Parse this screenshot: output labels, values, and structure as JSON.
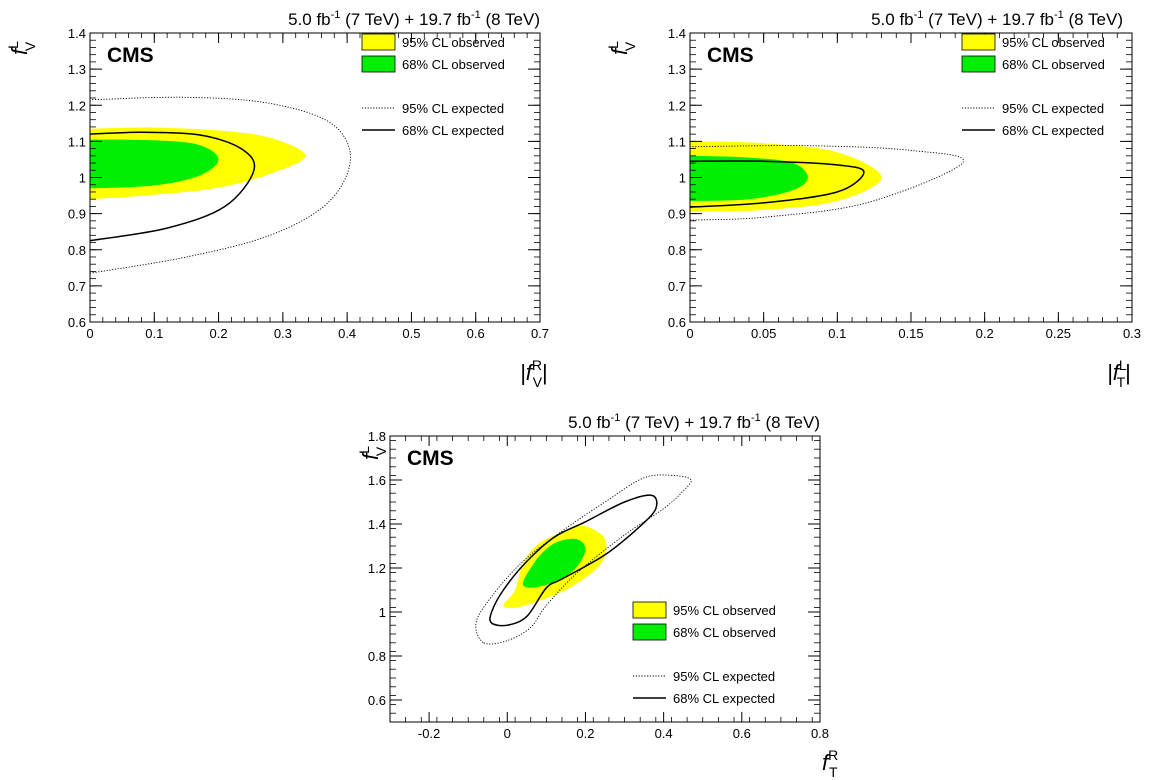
{
  "colors": {
    "cl95_observed": "#ffff00",
    "cl68_observed": "#00ee00",
    "expected_line": "#000000"
  },
  "chart_data": [
    {
      "type": "contour",
      "title": {
        "prefix": "5.0 fb",
        "sup1": "-1",
        "mid": " (7 TeV) + 19.7 fb",
        "sup2": "-1",
        "suffix": " (8 TeV)"
      },
      "brand": "CMS",
      "ylabel": {
        "base": "f",
        "sup": "L",
        "sub": "V"
      },
      "xlabel": {
        "base": "|f",
        "sup": "R",
        "sub": "V",
        "close": "|"
      },
      "xlim": [
        0,
        0.7
      ],
      "ylim": [
        0.6,
        1.4
      ],
      "xticks": [
        0,
        0.1,
        0.2,
        0.3,
        0.4,
        0.5,
        0.6,
        0.7
      ],
      "xtick_labels": [
        "0",
        "0.1",
        "0.2",
        "0.3",
        "0.4",
        "0.5",
        "0.6",
        "0.7"
      ],
      "yticks": [
        0.6,
        0.7,
        0.8,
        0.9,
        1.0,
        1.1,
        1.2,
        1.3,
        1.4
      ],
      "ytick_labels": [
        "0.6",
        "0.7",
        "0.8",
        "0.9",
        "1",
        "1.1",
        "1.2",
        "1.3",
        "1.4"
      ],
      "legend_position": "top-right",
      "legend": [
        "95% CL observed",
        "68% CL observed",
        "95% CL expected",
        "68% CL expected"
      ],
      "contours": [
        {
          "name": "95% CL observed",
          "points": [
            [
              0,
              0.94
            ],
            [
              0.1,
              0.952
            ],
            [
              0.2,
              0.972
            ],
            [
              0.28,
              1.01
            ],
            [
              0.335,
              1.06
            ],
            [
              0.28,
              1.11
            ],
            [
              0.2,
              1.13
            ],
            [
              0.1,
              1.138
            ],
            [
              0,
              1.135
            ]
          ]
        },
        {
          "name": "68% CL observed",
          "points": [
            [
              0,
              0.97
            ],
            [
              0.1,
              0.978
            ],
            [
              0.17,
              1.005
            ],
            [
              0.2,
              1.05
            ],
            [
              0.17,
              1.09
            ],
            [
              0.1,
              1.103
            ],
            [
              0,
              1.105
            ]
          ]
        },
        {
          "name": "95% CL expected",
          "points": [
            [
              0,
              0.735
            ],
            [
              0.15,
              0.78
            ],
            [
              0.28,
              0.84
            ],
            [
              0.37,
              0.93
            ],
            [
              0.405,
              1.05
            ],
            [
              0.375,
              1.15
            ],
            [
              0.28,
              1.205
            ],
            [
              0.15,
              1.222
            ],
            [
              0,
              1.215
            ]
          ]
        },
        {
          "name": "68% CL expected",
          "points": [
            [
              0,
              0.825
            ],
            [
              0.12,
              0.86
            ],
            [
              0.21,
              0.92
            ],
            [
              0.255,
              1.02
            ],
            [
              0.235,
              1.08
            ],
            [
              0.17,
              1.118
            ],
            [
              0.08,
              1.125
            ],
            [
              0,
              1.12
            ]
          ]
        }
      ]
    },
    {
      "type": "contour",
      "title": {
        "prefix": "5.0 fb",
        "sup1": "-1",
        "mid": " (7 TeV) + 19.7 fb",
        "sup2": "-1",
        "suffix": " (8 TeV)"
      },
      "brand": "CMS",
      "ylabel": {
        "base": "f",
        "sup": "L",
        "sub": "V"
      },
      "xlabel": {
        "base": "|f",
        "sup": "L",
        "sub": "T",
        "close": "|"
      },
      "xlim": [
        0,
        0.3
      ],
      "ylim": [
        0.6,
        1.4
      ],
      "xticks": [
        0,
        0.05,
        0.1,
        0.15,
        0.2,
        0.25,
        0.3
      ],
      "xtick_labels": [
        "0",
        "0.05",
        "0.1",
        "0.15",
        "0.2",
        "0.25",
        "0.3"
      ],
      "yticks": [
        0.6,
        0.7,
        0.8,
        0.9,
        1.0,
        1.1,
        1.2,
        1.3,
        1.4
      ],
      "ytick_labels": [
        "0.6",
        "0.7",
        "0.8",
        "0.9",
        "1",
        "1.1",
        "1.2",
        "1.3",
        "1.4"
      ],
      "legend_position": "top-right",
      "legend": [
        "95% CL observed",
        "68% CL observed",
        "95% CL expected",
        "68% CL expected"
      ],
      "contours": [
        {
          "name": "95% CL observed",
          "points": [
            [
              0,
              0.905
            ],
            [
              0.05,
              0.91
            ],
            [
              0.1,
              0.935
            ],
            [
              0.13,
              1.0
            ],
            [
              0.1,
              1.07
            ],
            [
              0.05,
              1.095
            ],
            [
              0,
              1.1
            ]
          ]
        },
        {
          "name": "68% CL observed",
          "points": [
            [
              0,
              0.935
            ],
            [
              0.04,
              0.94
            ],
            [
              0.07,
              0.965
            ],
            [
              0.08,
              1.0
            ],
            [
              0.07,
              1.04
            ],
            [
              0.04,
              1.055
            ],
            [
              0,
              1.06
            ]
          ]
        },
        {
          "name": "95% CL expected",
          "points": [
            [
              0,
              0.882
            ],
            [
              0.05,
              0.89
            ],
            [
              0.12,
              0.93
            ],
            [
              0.185,
              1.04
            ],
            [
              0.15,
              1.075
            ],
            [
              0.08,
              1.088
            ],
            [
              0,
              1.085
            ]
          ]
        },
        {
          "name": "68% CL expected",
          "points": [
            [
              0,
              0.918
            ],
            [
              0.05,
              0.93
            ],
            [
              0.1,
              0.96
            ],
            [
              0.118,
              1.015
            ],
            [
              0.1,
              1.035
            ],
            [
              0.05,
              1.045
            ],
            [
              0,
              1.045
            ]
          ]
        }
      ]
    },
    {
      "type": "contour",
      "title": {
        "prefix": "5.0 fb",
        "sup1": "-1",
        "mid": " (7 TeV) + 19.7 fb",
        "sup2": "-1",
        "suffix": " (8 TeV)"
      },
      "brand": "CMS",
      "ylabel": {
        "base": "f",
        "sup": "L",
        "sub": "V"
      },
      "xlabel": {
        "base": "f",
        "sup": "R",
        "sub": "T",
        "close": ""
      },
      "xlim": [
        -0.3,
        0.8
      ],
      "ylim": [
        0.5,
        1.8
      ],
      "xticks": [
        -0.2,
        0,
        0.2,
        0.4,
        0.6,
        0.8
      ],
      "xtick_labels": [
        "-0.2",
        "0",
        "0.2",
        "0.4",
        "0.6",
        "0.8"
      ],
      "yticks": [
        0.6,
        0.8,
        1.0,
        1.2,
        1.4,
        1.6,
        1.8
      ],
      "ytick_labels": [
        "0.6",
        "0.8",
        "1",
        "1.2",
        "1.4",
        "1.6",
        "1.8"
      ],
      "legend_position": "bottom-right",
      "legend": [
        "95% CL observed",
        "68% CL observed",
        "95% CL expected",
        "68% CL expected"
      ],
      "contours": [
        {
          "name": "95% CL observed",
          "points": [
            [
              -0.01,
              1.03
            ],
            [
              0.02,
              1.1
            ],
            [
              0.04,
              1.22
            ],
            [
              0.08,
              1.31
            ],
            [
              0.15,
              1.37
            ],
            [
              0.2,
              1.39
            ],
            [
              0.25,
              1.33
            ],
            [
              0.24,
              1.22
            ],
            [
              0.16,
              1.11
            ],
            [
              0.08,
              1.05
            ],
            [
              0.02,
              1.02
            ]
          ]
        },
        {
          "name": "68% CL observed",
          "points": [
            [
              0.04,
              1.13
            ],
            [
              0.06,
              1.2
            ],
            [
              0.09,
              1.27
            ],
            [
              0.13,
              1.32
            ],
            [
              0.18,
              1.33
            ],
            [
              0.2,
              1.28
            ],
            [
              0.17,
              1.19
            ],
            [
              0.11,
              1.13
            ],
            [
              0.06,
              1.11
            ]
          ]
        },
        {
          "name": "95% CL expected",
          "points": [
            [
              -0.06,
              0.86
            ],
            [
              0.0,
              0.87
            ],
            [
              0.06,
              0.93
            ],
            [
              0.1,
              1.03
            ],
            [
              0.18,
              1.18
            ],
            [
              0.3,
              1.35
            ],
            [
              0.4,
              1.47
            ],
            [
              0.45,
              1.55
            ],
            [
              0.47,
              1.6
            ],
            [
              0.43,
              1.62
            ],
            [
              0.35,
              1.61
            ],
            [
              0.25,
              1.5
            ],
            [
              0.15,
              1.38
            ],
            [
              0.04,
              1.23
            ],
            [
              -0.04,
              1.07
            ],
            [
              -0.08,
              0.95
            ]
          ]
        },
        {
          "name": "68% CL expected",
          "points": [
            [
              -0.04,
              0.95
            ],
            [
              0.0,
              0.94
            ],
            [
              0.05,
              0.98
            ],
            [
              0.1,
              1.11
            ],
            [
              0.14,
              1.15
            ],
            [
              0.25,
              1.26
            ],
            [
              0.34,
              1.39
            ],
            [
              0.38,
              1.47
            ],
            [
              0.37,
              1.53
            ],
            [
              0.3,
              1.5
            ],
            [
              0.2,
              1.41
            ],
            [
              0.12,
              1.34
            ],
            [
              0.05,
              1.23
            ],
            [
              -0.01,
              1.1
            ],
            [
              -0.04,
              1.0
            ]
          ]
        }
      ]
    }
  ]
}
